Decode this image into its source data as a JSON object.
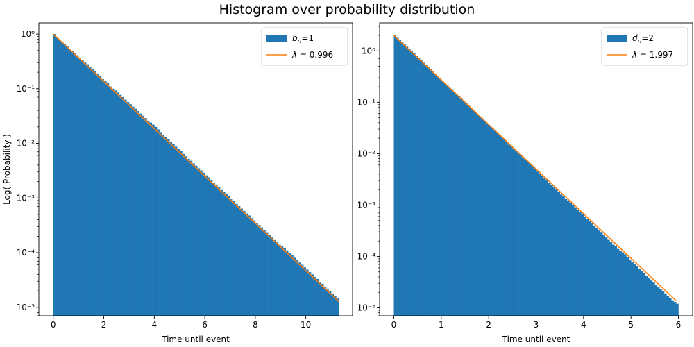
{
  "title": "Histogram over probability distribution",
  "colors": {
    "bars": "#1f77b4",
    "fit": "#ff7f0e"
  },
  "chart_data": [
    {
      "type": "bar",
      "subtype": "histogram",
      "scale_y": "log",
      "xlabel": "Time until event",
      "ylabel": "Log( Probability )",
      "xlim": [
        -0.57,
        11.85
      ],
      "ylim": [
        7e-06,
        1.6
      ],
      "xticks": [
        0,
        2,
        4,
        6,
        8,
        10
      ],
      "yticks": [
        1e-05,
        0.0001,
        0.001,
        0.01,
        0.1,
        1
      ],
      "ytick_labels": [
        "10⁻⁵",
        "10⁻⁴",
        "10⁻³",
        "10⁻²",
        "10⁻¹",
        "10⁰"
      ],
      "legend_position": "upper right",
      "legend": [
        {
          "kind": "bar",
          "label": "b_n=1",
          "sym": "b",
          "sub": "n",
          "rest": "=1"
        },
        {
          "kind": "line",
          "label": "λ = 0.996",
          "sym": "λ",
          "rest": " =  0.996"
        }
      ],
      "histogram": {
        "bin_start": 0,
        "bin_width": 0.1,
        "values": [
          1.0,
          0.87,
          0.78,
          0.72,
          0.65,
          0.59,
          0.54,
          0.49,
          0.45,
          0.41,
          0.37,
          0.33,
          0.3,
          0.28,
          0.25,
          0.23,
          0.21,
          0.19,
          0.17,
          0.15,
          0.14,
          0.13,
          0.11,
          0.1,
          0.093,
          0.085,
          0.077,
          0.07,
          0.063,
          0.057,
          0.052,
          0.047,
          0.043,
          0.039,
          0.035,
          0.032,
          0.029,
          0.026,
          0.024,
          0.022,
          0.02,
          0.018,
          0.016,
          0.014,
          0.013,
          0.0118,
          0.0105,
          0.0096,
          0.0087,
          0.0079,
          0.0072,
          0.0064,
          0.0058,
          0.0052,
          0.0048,
          0.0043,
          0.0039,
          0.0035,
          0.0032,
          0.0029,
          0.0026,
          0.0024,
          0.0021,
          0.0019,
          0.0017,
          0.0016,
          0.0014,
          0.0013,
          0.0012,
          0.0011,
          0.00095,
          0.00087,
          0.00078,
          0.00071,
          0.00064,
          0.00058,
          0.00052,
          0.00048,
          0.00043,
          0.00039,
          0.00035,
          0.00032,
          0.00029,
          0.00026,
          0.00023,
          0.00021,
          0.00019,
          0.00017,
          0.00016,
          0.00014,
          0.00013,
          0.00012,
          0.00011,
          0.0001,
          9e-05,
          8.1e-05,
          7.3e-05,
          6.6e-05,
          6e-05,
          5.4e-05,
          4.9e-05,
          4.4e-05,
          4e-05,
          3.6e-05,
          3.3e-05,
          2.9e-05,
          2.7e-05,
          2.4e-05,
          2.2e-05,
          1.95e-05,
          1.76e-05,
          1.6e-05,
          1.45e-05
        ]
      },
      "fit_line": {
        "lambda": 0.996,
        "x": [
          0,
          11.3
        ]
      }
    },
    {
      "type": "bar",
      "subtype": "histogram",
      "scale_y": "log",
      "xlabel": "Time until event",
      "ylabel": "",
      "xlim": [
        -0.3,
        6.3
      ],
      "ylim": [
        7e-06,
        3.5
      ],
      "xticks": [
        0,
        1,
        2,
        3,
        4,
        5,
        6
      ],
      "yticks": [
        1e-05,
        0.0001,
        0.001,
        0.01,
        0.1,
        1
      ],
      "ytick_labels": [
        "10⁻⁵",
        "10⁻⁴",
        "10⁻³",
        "10⁻²",
        "10⁻¹",
        "10⁰"
      ],
      "legend_position": "upper right",
      "legend": [
        {
          "kind": "bar",
          "label": "d_n=2",
          "sym": "d",
          "sub": "n",
          "rest": "=2"
        },
        {
          "kind": "line",
          "label": "λ = 1.997",
          "sym": "λ",
          "rest": " =  1.997"
        }
      ],
      "histogram": {
        "bin_start": 0,
        "bin_width": 0.05,
        "values": [
          2.0,
          1.8,
          1.63,
          1.47,
          1.33,
          1.2,
          1.09,
          0.98,
          0.89,
          0.8,
          0.73,
          0.66,
          0.59,
          0.54,
          0.48,
          0.44,
          0.4,
          0.36,
          0.32,
          0.29,
          0.26,
          0.24,
          0.22,
          0.19,
          0.18,
          0.16,
          0.14,
          0.13,
          0.12,
          0.105,
          0.095,
          0.086,
          0.078,
          0.07,
          0.063,
          0.057,
          0.052,
          0.047,
          0.042,
          0.038,
          0.034,
          0.031,
          0.028,
          0.025,
          0.023,
          0.021,
          0.019,
          0.017,
          0.015,
          0.014,
          0.0125,
          0.0113,
          0.0102,
          0.0092,
          0.0083,
          0.0075,
          0.0068,
          0.0061,
          0.0055,
          0.005,
          0.0045,
          0.0041,
          0.0037,
          0.0033,
          0.003,
          0.0027,
          0.0025,
          0.0022,
          0.002,
          0.0018,
          0.0016,
          0.0015,
          0.0013,
          0.0012,
          0.0011,
          0.00099,
          0.0009,
          0.00081,
          0.00073,
          0.00066,
          0.0006,
          0.00054,
          0.00049,
          0.00044,
          0.0004,
          0.00036,
          0.00032,
          0.00029,
          0.00026,
          0.00024,
          0.00021,
          0.00019,
          0.00017,
          0.00016,
          0.00014,
          0.00013,
          0.00012,
          0.00011,
          9.6e-05,
          8.7e-05,
          7.8e-05,
          7.1e-05,
          6.4e-05,
          5.8e-05,
          5.2e-05,
          4.7e-05,
          4.2e-05,
          3.8e-05,
          3.4e-05,
          3.1e-05,
          2.8e-05,
          2.5e-05,
          2.3e-05,
          2.1e-05,
          1.9e-05,
          1.7e-05,
          1.55e-05,
          1.4e-05,
          1.3e-05,
          1.2e-05
        ]
      },
      "fit_line": {
        "lambda": 1.997,
        "x": [
          0,
          5.95
        ]
      }
    }
  ]
}
